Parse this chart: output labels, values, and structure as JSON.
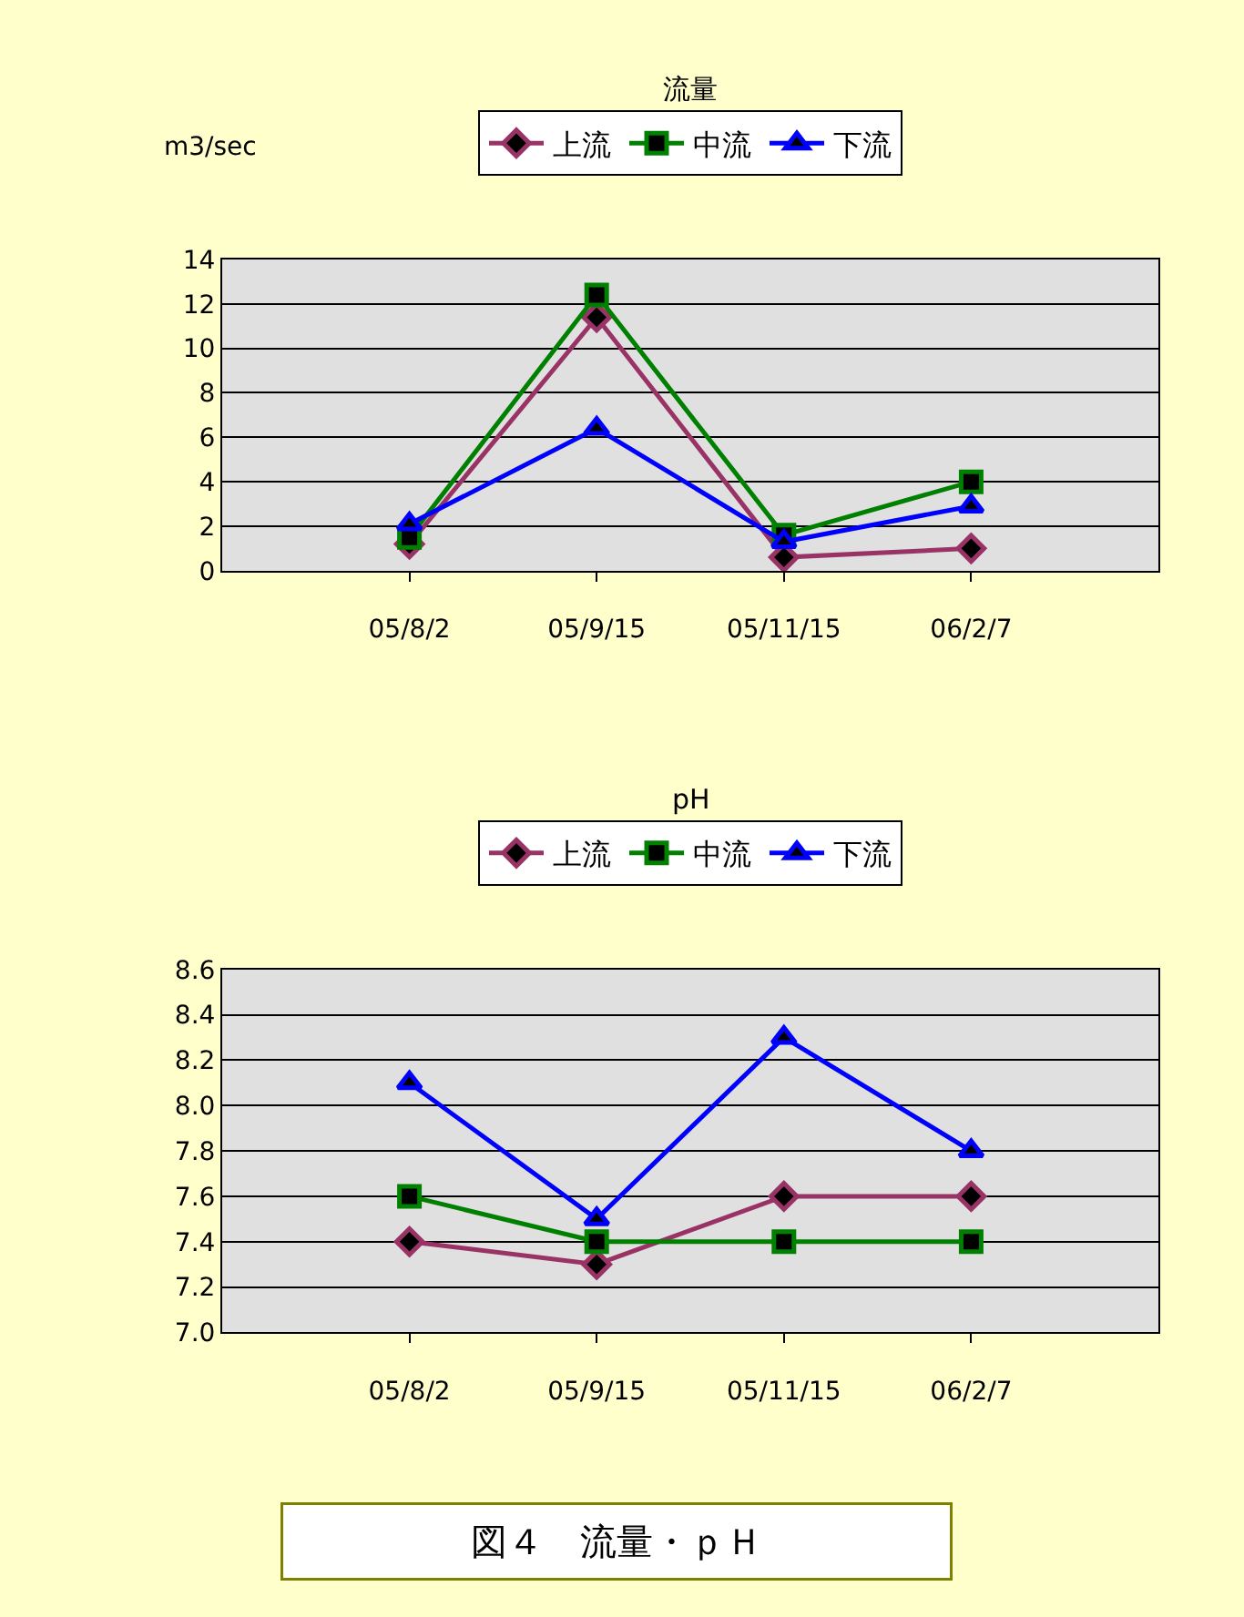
{
  "chart_data": [
    {
      "type": "line",
      "title": "流量",
      "ylabel": "m3/sec",
      "categories": [
        "05/8/2",
        "05/9/15",
        "05/11/15",
        "06/2/7"
      ],
      "ylim": [
        0,
        14
      ],
      "yticks": [
        0,
        2,
        4,
        6,
        8,
        10,
        12,
        14
      ],
      "grid": "y",
      "legend": "top",
      "series": [
        {
          "name": "上流",
          "color": "#993366",
          "marker": "diamond",
          "values": [
            1.2,
            11.4,
            0.6,
            1.0
          ]
        },
        {
          "name": "中流",
          "color": "#008000",
          "marker": "square",
          "values": [
            1.5,
            12.4,
            1.6,
            4.0
          ]
        },
        {
          "name": "下流",
          "color": "#0000ff",
          "marker": "triangle",
          "values": [
            2.1,
            6.4,
            1.3,
            2.9
          ]
        }
      ]
    },
    {
      "type": "line",
      "title": "pH",
      "categories": [
        "05/8/2",
        "05/9/15",
        "05/11/15",
        "06/2/7"
      ],
      "ylim": [
        7.0,
        8.6
      ],
      "yticks": [
        {
          "value": 7.0,
          "label": "7.0"
        },
        7.2,
        7.4,
        7.6,
        7.8,
        {
          "value": 8.0,
          "label": "8.0"
        },
        8.2,
        8.4,
        8.6
      ],
      "grid": "y",
      "legend": "top",
      "annotations": [
        "図４　流量・ｐＨ"
      ],
      "series": [
        {
          "name": "上流",
          "color": "#993366",
          "marker": "diamond",
          "values": [
            7.4,
            7.3,
            7.6,
            7.6
          ]
        },
        {
          "name": "中流",
          "color": "#008000",
          "marker": "square",
          "values": [
            7.6,
            7.4,
            7.4,
            7.4
          ]
        },
        {
          "name": "下流",
          "color": "#0000ff",
          "marker": "triangle",
          "values": [
            8.1,
            7.5,
            8.3,
            7.8
          ]
        }
      ]
    }
  ]
}
